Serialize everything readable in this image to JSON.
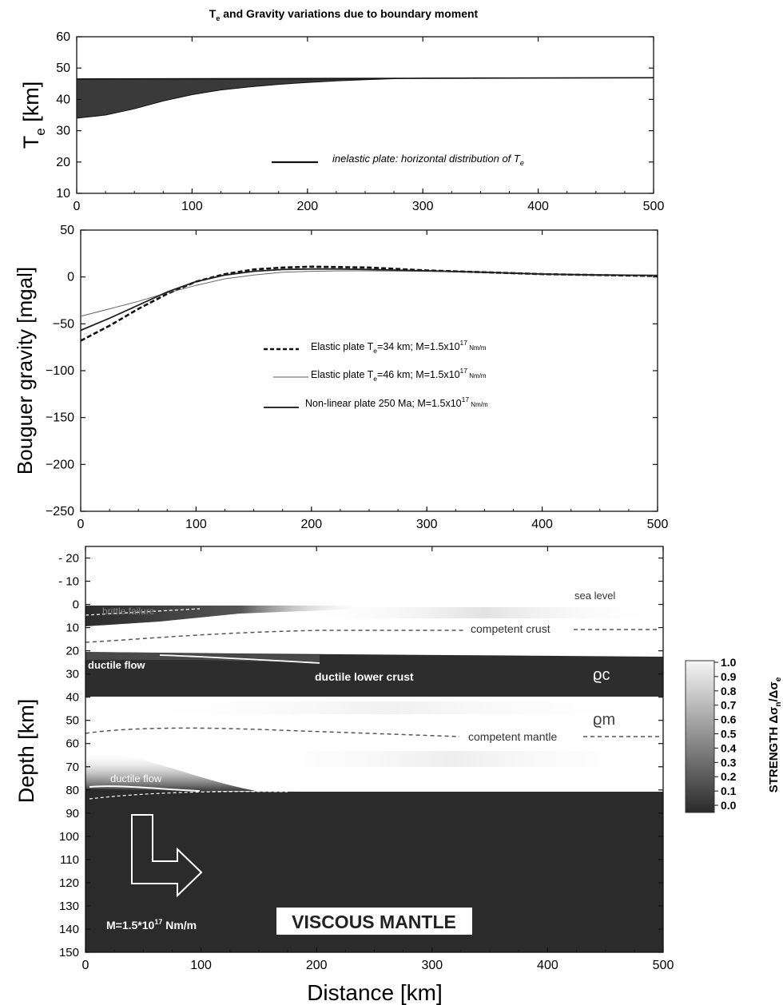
{
  "figure": {
    "title_parts": [
      "T",
      "e",
      " and Gravity variations due to boundary moment"
    ]
  },
  "chart_data": [
    {
      "type": "area",
      "panel": "te",
      "ylabel_parts": [
        "T",
        "e",
        " [km]"
      ],
      "xlim": [
        0,
        500
      ],
      "ylim": [
        10,
        60
      ],
      "x_ticks": [
        0,
        100,
        200,
        300,
        400,
        500
      ],
      "y_ticks": [
        10,
        20,
        30,
        40,
        50,
        60
      ],
      "band": {
        "x": [
          0,
          25,
          50,
          75,
          100,
          125,
          150,
          175,
          200,
          225,
          250,
          275,
          300,
          350,
          400,
          450,
          500
        ],
        "upper": [
          46.5,
          46.5,
          46.5,
          46.5,
          46.5,
          46.5,
          46.5,
          46.5,
          46.5,
          46.5,
          46.5,
          46.6,
          46.8,
          46.9,
          46.9,
          46.9,
          46.9
        ],
        "lower": [
          34,
          35,
          37,
          39.5,
          41.5,
          43,
          44,
          44.8,
          45.4,
          45.9,
          46.3,
          46.6,
          46.8,
          46.9,
          46.9,
          46.9,
          46.9
        ]
      },
      "legend": {
        "label_parts": [
          "inelastic plate: horizontal distribution of ",
          "T",
          "e"
        ]
      }
    },
    {
      "type": "line",
      "panel": "gravity",
      "ylabel": "Bouguer gravity [mgal]",
      "xlim": [
        0,
        500
      ],
      "ylim": [
        -250,
        50
      ],
      "x_ticks": [
        0,
        100,
        200,
        300,
        400,
        500
      ],
      "y_ticks": [
        50,
        0,
        -50,
        -100,
        -150,
        -200,
        -250
      ],
      "x": [
        0,
        25,
        50,
        75,
        100,
        125,
        150,
        175,
        200,
        225,
        250,
        300,
        350,
        400,
        450,
        500
      ],
      "series": [
        {
          "label_parts": [
            "Elastic plate T",
            "e",
            "=34 km; M=1.5x10",
            "17",
            " Nm/m"
          ],
          "style": "dashed",
          "values": [
            -68,
            -52,
            -34,
            -18,
            -5,
            3,
            8,
            10,
            11,
            10.5,
            10,
            7,
            5,
            3,
            2,
            1
          ]
        },
        {
          "label_parts": [
            "Elastic plate T",
            "e",
            "=46 km; M=1.5x10",
            "17",
            " Nm/m"
          ],
          "style": "thin",
          "values": [
            -42,
            -34,
            -26,
            -17,
            -9,
            -2,
            2,
            5,
            6,
            6.5,
            6.5,
            6,
            5,
            3.5,
            2.5,
            2
          ]
        },
        {
          "label_parts": [
            "Non-linear plate 250 Ma;  M=1.5x10",
            "17",
            " Nm/m"
          ],
          "style": "solid",
          "values": [
            -57,
            -44,
            -30,
            -16,
            -5,
            2,
            6,
            8,
            8.5,
            8.5,
            8,
            6.5,
            5,
            3,
            2,
            1.5
          ]
        }
      ]
    },
    {
      "type": "heatmap",
      "panel": "strength",
      "xlabel": "Distance [km]",
      "ylabel": "Depth [km]",
      "xlim": [
        0,
        500
      ],
      "ylim": [
        -25,
        150
      ],
      "x_ticks": [
        0,
        100,
        200,
        300,
        400,
        500
      ],
      "y_ticks": [
        -20,
        -10,
        0,
        10,
        20,
        30,
        40,
        50,
        60,
        70,
        80,
        90,
        100,
        110,
        120,
        130,
        140,
        150
      ],
      "colorbar": {
        "label_parts": [
          "STRENGTH Δσ",
          "n",
          "/Δσ",
          "e"
        ],
        "ticks": [
          "1.0",
          "0.9",
          "0.8",
          "0.7",
          "0.6",
          "0.5",
          "0.4",
          "0.3",
          "0.2",
          "0.1",
          "0.0"
        ]
      },
      "annotations": {
        "brittle": "brittle failure",
        "sea_level": "sea level",
        "competent_crust": "competent crust",
        "ductile_flow_1": "ductile flow",
        "ductile_lower_crust": "ductile lower crust",
        "rho_c": "ϱc",
        "rho_m": "ϱm",
        "competent_mantle": "competent mantle",
        "ductile_flow_2": "ductile flow",
        "moment_parts": [
          "M=1.5*10",
          "17",
          " Nm/m"
        ],
        "viscous_mantle": "VISCOUS MANTLE"
      }
    }
  ],
  "colors": {
    "dark": "#2b2b2b",
    "band": "#3a3a3a",
    "white": "#ffffff",
    "axis": "#111111"
  }
}
